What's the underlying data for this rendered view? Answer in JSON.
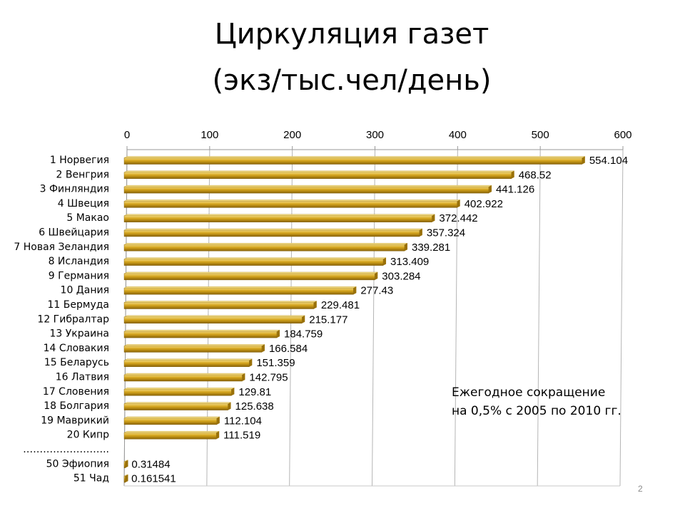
{
  "slide": {
    "title_line1": "Циркуляция газет",
    "title_line2": "(экз/тыс.чел/день)",
    "note_line1": "Ежегодное сокращение",
    "note_line2": "на 0,5% с 2005 по 2010 гг.",
    "page_number": "2"
  },
  "chart_data": {
    "type": "bar",
    "orientation": "horizontal",
    "title": "Циркуляция газет (экз/тыс.чел/день)",
    "xlim": [
      0,
      600
    ],
    "x_ticks": [
      "0",
      "100",
      "200",
      "300",
      "400",
      "500",
      "600"
    ],
    "x_axis_position": "top",
    "grid": true,
    "categories": [
      "1 Норвегия",
      "2 Венгрия",
      "3 Финляндия",
      "4 Швеция",
      "5 Макао",
      "6 Швейцария",
      "7 Новая Зеландия",
      "8 Исландия",
      "9 Германия",
      "10 Дания",
      "11 Бермуда",
      "12 Гибралтар",
      "13 Украина",
      "14 Словакия",
      "15 Беларусь",
      "16 Латвия",
      "17 Словения",
      "18 Болгария",
      "19 Маврикий",
      "20 Кипр",
      "……………………..",
      "50 Эфиопия",
      "51 Чад"
    ],
    "values": [
      554.104,
      468.52,
      441.126,
      402.922,
      372.442,
      357.324,
      339.281,
      313.409,
      303.284,
      277.43,
      229.481,
      215.177,
      184.759,
      166.584,
      151.359,
      142.795,
      129.81,
      125.638,
      112.104,
      111.519,
      null,
      0.31484,
      0.161541
    ],
    "value_labels": [
      "554.104",
      "468.52",
      "441.126",
      "402.922",
      "372.442",
      "357.324",
      "339.281",
      "313.409",
      "303.284",
      "277.43",
      "229.481",
      "215.177",
      "184.759",
      "166.584",
      "151.359",
      "142.795",
      "129.81",
      "125.638",
      "112.104",
      "111.519",
      "",
      "0.31484",
      "0.161541"
    ],
    "bar_color": "#c9960c"
  }
}
